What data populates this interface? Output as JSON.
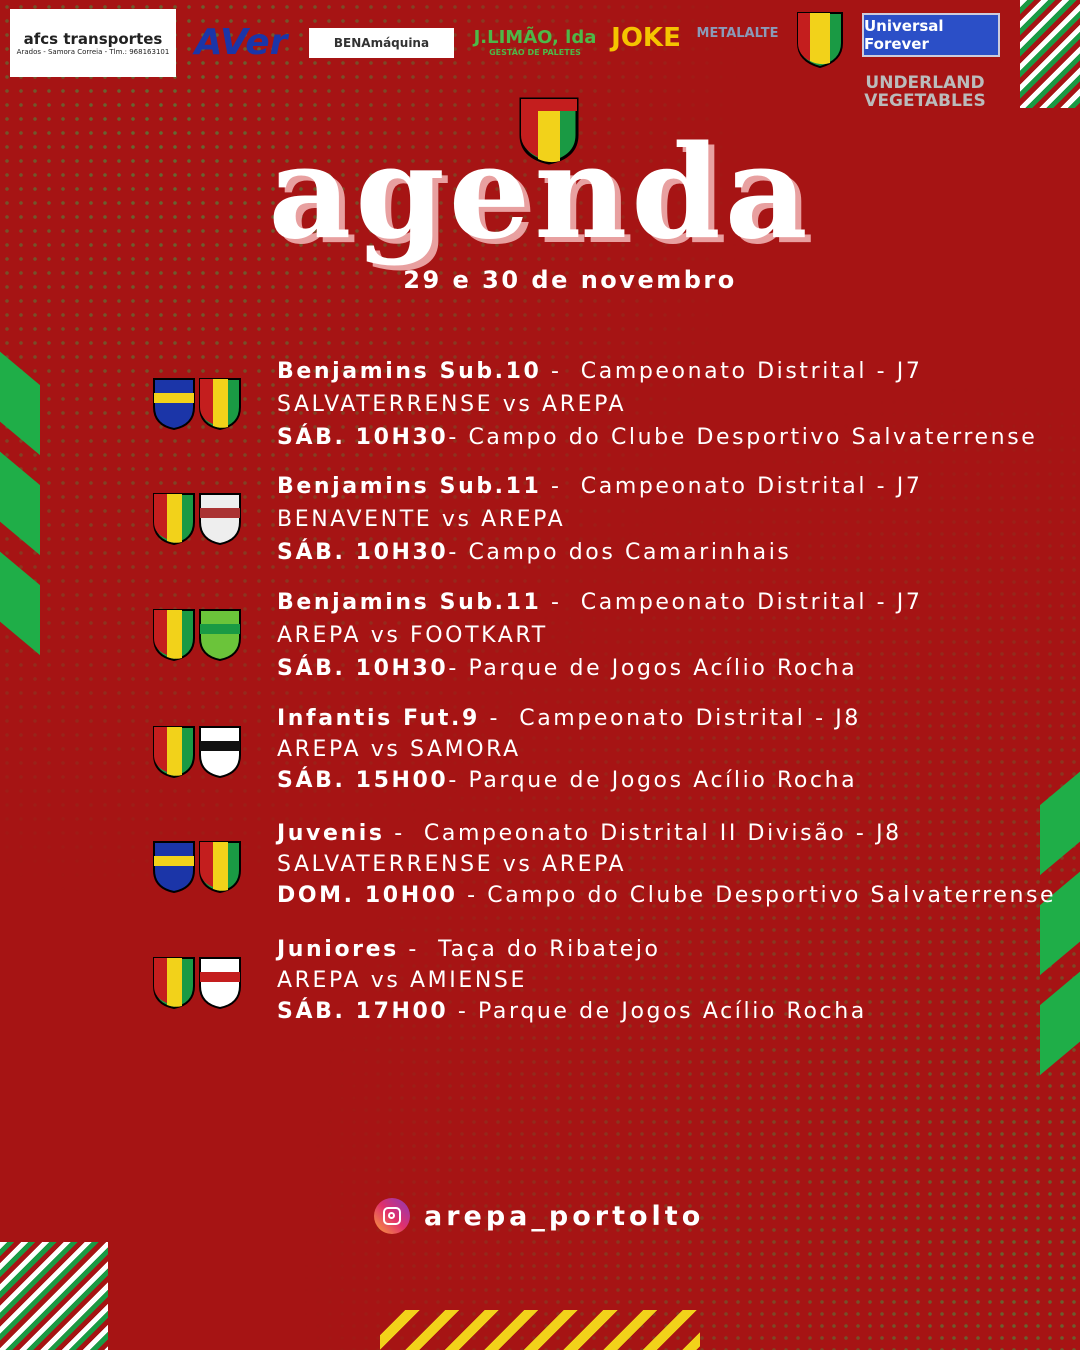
{
  "sponsors": [
    "afcs transportes",
    "Arados - Samora Correia - Tlm.: 968163101",
    "AVer",
    "BENAmáquina",
    "J.LIMÃO, lda",
    "GESTÃO DE PALETES",
    "JOKE",
    "METALALTE",
    "Universal Forever",
    "UNDERLAND VEGETABLES"
  ],
  "colors": {
    "background": "#a61414",
    "accent_green": "#1fae48",
    "text": "#ffffff"
  },
  "header": {
    "title": "agenda",
    "date": "29 e 30 de novembro"
  },
  "games": [
    {
      "category": "Benjamins Sub.10",
      "separator": " - ",
      "competition": " Campeonato Distrital - J7",
      "match": "SALVATERRENSE vs AREPA",
      "time": "SÁB. 10H30",
      "venue": "- Campo do Clube Desportivo Salvaterrense"
    },
    {
      "category": "Benjamins Sub.11",
      "separator": " - ",
      "competition": " Campeonato Distrital - J7",
      "match": "BENAVENTE vs AREPA",
      "time": "SÁB. 10H30",
      "venue": "- Campo dos Camarinhais"
    },
    {
      "category": "Benjamins Sub.11",
      "separator": " - ",
      "competition": " Campeonato Distrital - J7",
      "match": "AREPA vs FOOTKART",
      "time": "SÁB. 10H30",
      "venue": "- Parque de Jogos Acílio Rocha"
    },
    {
      "category": "Infantis Fut.9",
      "separator": " - ",
      "competition": " Campeonato Distrital - J8",
      "match": "AREPA vs SAMORA",
      "time": "SÁB. 15H00",
      "venue": "- Parque de Jogos Acílio Rocha"
    },
    {
      "category": "Juvenis",
      "separator": " - ",
      "competition": " Campeonato Distrital II Divisão - J8",
      "match": "SALVATERRENSE vs AREPA",
      "time": "DOM. 10H00",
      "venue": " - Campo do Clube Desportivo Salvaterrense"
    },
    {
      "category": "Juniores",
      "separator": " - ",
      "competition": " Taça do Ribatejo",
      "match": "AREPA vs AMIENSE",
      "time": "SÁB. 17H00",
      "venue": " - Parque de Jogos Acílio Rocha"
    }
  ],
  "footer": {
    "instagram": "arepa_portolto",
    "icon": "instagram-icon"
  }
}
